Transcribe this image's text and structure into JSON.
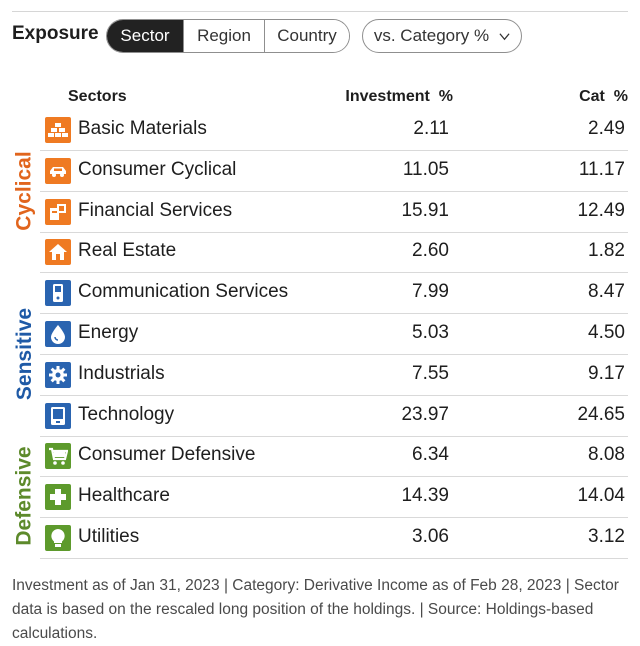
{
  "header": {
    "title": "Exposure",
    "tabs": [
      {
        "label": "Sector",
        "active": true
      },
      {
        "label": "Region",
        "active": false
      },
      {
        "label": "Country",
        "active": false
      }
    ],
    "dropdown_label": "vs. Category %"
  },
  "table": {
    "headers": {
      "sector": "Sectors",
      "investment": "Investment  %",
      "category": "Cat  %"
    },
    "groups": [
      {
        "label": "Cyclical",
        "color": "#e1651d"
      },
      {
        "label": "Sensitive",
        "color": "#1f5aa6"
      },
      {
        "label": "Defensive",
        "color": "#5d8a2b"
      }
    ],
    "rows": [
      {
        "name": "Basic Materials",
        "investment": "2.11",
        "category": "2.49",
        "icon": "basic-materials-icon",
        "color": "#ef7a22"
      },
      {
        "name": "Consumer Cyclical",
        "investment": "11.05",
        "category": "11.17",
        "icon": "car-icon",
        "color": "#ef7a22"
      },
      {
        "name": "Financial Services",
        "investment": "15.91",
        "category": "12.49",
        "icon": "financial-icon",
        "color": "#ef7a22"
      },
      {
        "name": "Real Estate",
        "investment": "2.60",
        "category": "1.82",
        "icon": "house-icon",
        "color": "#ef7a22"
      },
      {
        "name": "Communication Services",
        "investment": "7.99",
        "category": "8.47",
        "icon": "phone-icon",
        "color": "#2a64b0"
      },
      {
        "name": "Energy",
        "investment": "5.03",
        "category": "4.50",
        "icon": "drop-icon",
        "color": "#2a64b0"
      },
      {
        "name": "Industrials",
        "investment": "7.55",
        "category": "9.17",
        "icon": "gear-icon",
        "color": "#2a64b0"
      },
      {
        "name": "Technology",
        "investment": "23.97",
        "category": "24.65",
        "icon": "device-icon",
        "color": "#2a64b0"
      },
      {
        "name": "Consumer Defensive",
        "investment": "6.34",
        "category": "8.08",
        "icon": "cart-icon",
        "color": "#5d9a2c"
      },
      {
        "name": "Healthcare",
        "investment": "14.39",
        "category": "14.04",
        "icon": "cross-icon",
        "color": "#5d9a2c"
      },
      {
        "name": "Utilities",
        "investment": "3.06",
        "category": "3.12",
        "icon": "bulb-icon",
        "color": "#5d9a2c"
      }
    ]
  },
  "footnote": "Investment as of Jan 31, 2023 | Category: Derivative Income as of Feb 28, 2023 | Sector data is based on the rescaled long position of the holdings. | Source: Holdings-based calculations."
}
